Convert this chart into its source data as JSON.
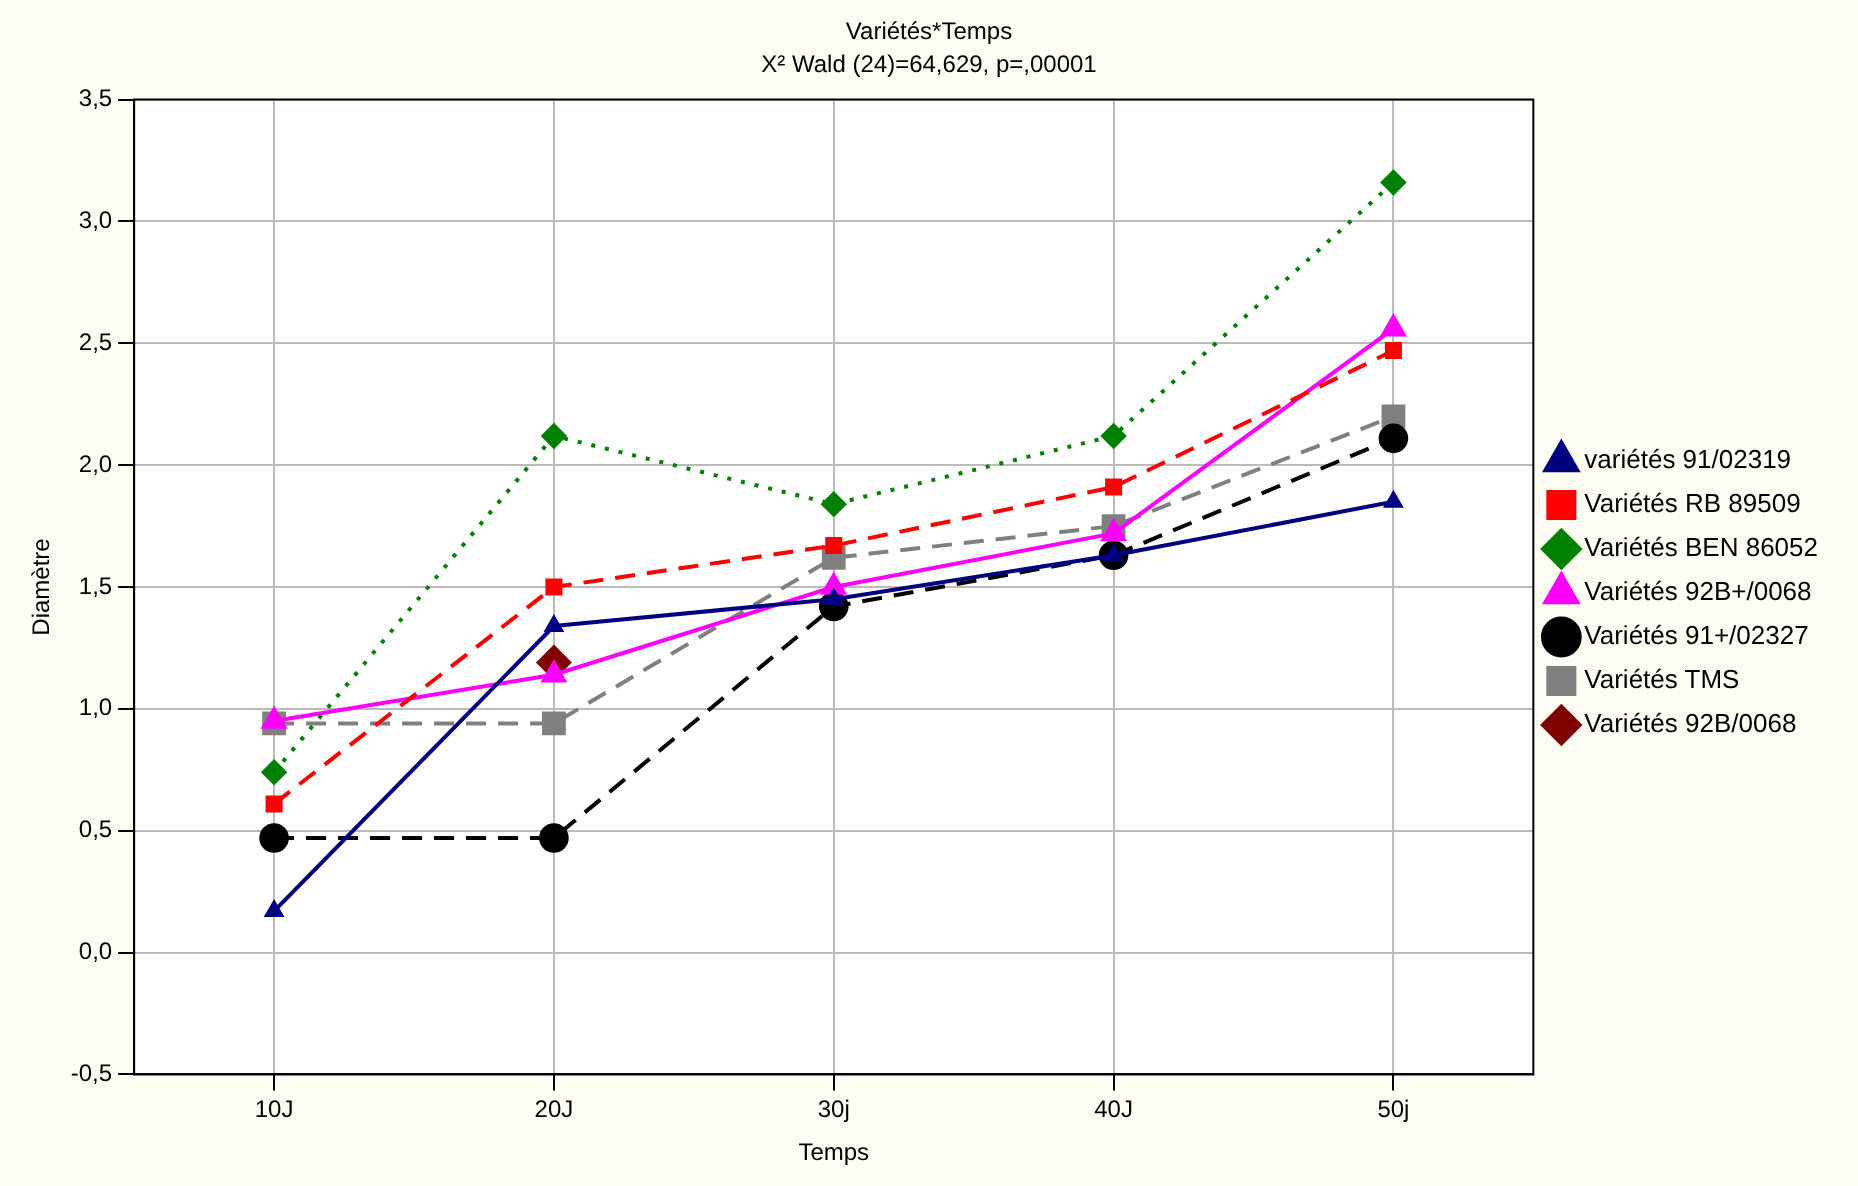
{
  "chart_data": {
    "type": "line",
    "title": "Variétés*Temps",
    "subtitle": "X² Wald (24)=64,629, p=,00001",
    "xlabel": "Temps",
    "ylabel": "Diamètre",
    "categories": [
      "10J",
      "20J",
      "30j",
      "40J",
      "50j"
    ],
    "series": [
      {
        "name": "variétés 91/02319",
        "color": "#000080",
        "marker": "triangle",
        "line_style": "solid",
        "values": [
          0.17,
          1.34,
          1.45,
          1.63,
          1.85
        ]
      },
      {
        "name": "Variétés RB 89509",
        "color": "#ff0000",
        "marker": "square",
        "line_style": "dashed",
        "values": [
          0.61,
          1.5,
          1.67,
          1.91,
          2.47
        ]
      },
      {
        "name": "Variétés BEN 86052",
        "color": "#008000",
        "marker": "diamond",
        "line_style": "dotted",
        "values": [
          0.74,
          2.12,
          1.84,
          2.12,
          3.16
        ]
      },
      {
        "name": "Variétés 92B+/0068",
        "color": "#ff00ff",
        "marker": "triangle",
        "line_style": "solid",
        "values": [
          0.95,
          1.14,
          1.5,
          1.72,
          2.56
        ]
      },
      {
        "name": "Variétés 91+/02327",
        "color": "#000000",
        "marker": "circle",
        "line_style": "dashed",
        "values": [
          0.47,
          0.47,
          1.42,
          1.63,
          2.11
        ]
      },
      {
        "name": "Variétés TMS",
        "color": "#808080",
        "marker": "square",
        "line_style": "dashed",
        "values": [
          0.94,
          0.94,
          1.62,
          1.75,
          2.2
        ]
      },
      {
        "name": "Variétés 92B/0068",
        "color": "#800000",
        "marker": "diamond",
        "line_style": "solid",
        "values": [
          null,
          1.19,
          null,
          null,
          null
        ]
      }
    ],
    "ylim": [
      -0.5,
      3.5
    ],
    "yticks": [
      {
        "value": -0.5,
        "label": "-0,5"
      },
      {
        "value": 0,
        "label": "0,0"
      },
      {
        "value": 0.5,
        "label": "0,5"
      },
      {
        "value": 1,
        "label": "1,0"
      },
      {
        "value": 1.5,
        "label": "1,5"
      },
      {
        "value": 2,
        "label": "2,0"
      },
      {
        "value": 2.5,
        "label": "2,5"
      },
      {
        "value": 3,
        "label": "3,0"
      },
      {
        "value": 3.5,
        "label": "3,5"
      }
    ],
    "grid": true,
    "legend": "right"
  }
}
